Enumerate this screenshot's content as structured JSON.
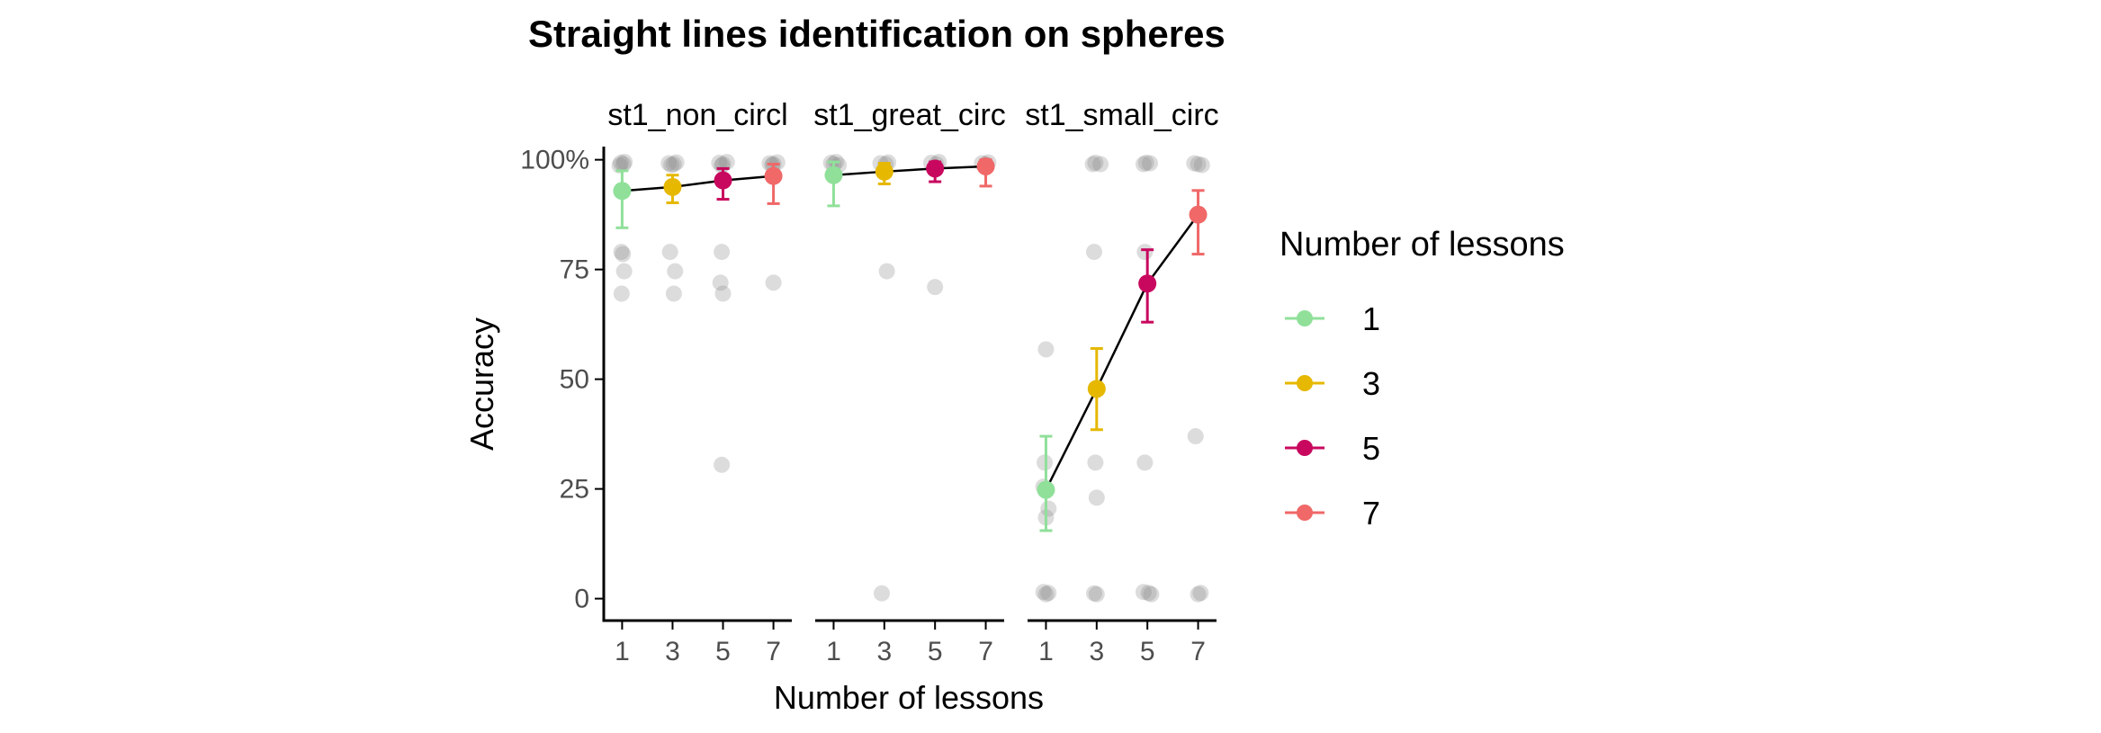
{
  "chart_data": {
    "type": "scatter",
    "title": "Straight lines identification on spheres",
    "xlabel": "Number of lessons",
    "ylabel": "Accuracy",
    "x_ticks": [
      "1",
      "3",
      "5",
      "7"
    ],
    "y_ticks": [
      "0",
      "25",
      "50",
      "75",
      "100%"
    ],
    "ylim": [
      -5,
      103
    ],
    "legend": {
      "title": "Number of lessons",
      "position": "right",
      "entries": [
        {
          "label": "1",
          "color": "#90e09a"
        },
        {
          "label": "3",
          "color": "#e6b800"
        },
        {
          "label": "5",
          "color": "#c8085e"
        },
        {
          "label": "7",
          "color": "#f06868"
        }
      ]
    },
    "panels": [
      {
        "label": "st1_non_circl",
        "means": [
          {
            "x": 1,
            "y": 92.9,
            "lo": 84.5,
            "hi": 97.5
          },
          {
            "x": 3,
            "y": 93.8,
            "lo": 90.2,
            "hi": 96.5
          },
          {
            "x": 5,
            "y": 95.3,
            "lo": 91.0,
            "hi": 98.0
          },
          {
            "x": 7,
            "y": 96.3,
            "lo": 90.0,
            "hi": 99.0
          }
        ],
        "raw_points": [
          {
            "x": 0.95,
            "y": 99.3
          },
          {
            "x": 1.05,
            "y": 99.0
          },
          {
            "x": 0.9,
            "y": 98.7
          },
          {
            "x": 1.1,
            "y": 99.5
          },
          {
            "x": 0.97,
            "y": 79.0
          },
          {
            "x": 1.03,
            "y": 78.5
          },
          {
            "x": 1.08,
            "y": 74.6
          },
          {
            "x": 0.98,
            "y": 69.5
          },
          {
            "x": 2.85,
            "y": 99.2
          },
          {
            "x": 3.05,
            "y": 99.0
          },
          {
            "x": 3.15,
            "y": 99.4
          },
          {
            "x": 2.95,
            "y": 98.8
          },
          {
            "x": 2.9,
            "y": 79.0
          },
          {
            "x": 3.1,
            "y": 74.6
          },
          {
            "x": 3.05,
            "y": 69.5
          },
          {
            "x": 4.85,
            "y": 99.3
          },
          {
            "x": 5.0,
            "y": 99.0
          },
          {
            "x": 5.15,
            "y": 99.5
          },
          {
            "x": 4.95,
            "y": 98.7
          },
          {
            "x": 4.95,
            "y": 79.0
          },
          {
            "x": 4.9,
            "y": 72.0
          },
          {
            "x": 5.0,
            "y": 69.5
          },
          {
            "x": 4.95,
            "y": 30.5
          },
          {
            "x": 6.85,
            "y": 99.2
          },
          {
            "x": 7.0,
            "y": 99.0
          },
          {
            "x": 7.15,
            "y": 99.4
          },
          {
            "x": 6.95,
            "y": 98.8
          },
          {
            "x": 7.0,
            "y": 72.0
          }
        ]
      },
      {
        "label": "st1_great_circ",
        "means": [
          {
            "x": 1,
            "y": 96.5,
            "lo": 89.5,
            "hi": 99.5
          },
          {
            "x": 3,
            "y": 97.3,
            "lo": 94.5,
            "hi": 99.2
          },
          {
            "x": 5,
            "y": 98.0,
            "lo": 95.0,
            "hi": 99.5
          },
          {
            "x": 7,
            "y": 98.5,
            "lo": 94.0,
            "hi": 100.0
          }
        ],
        "raw_points": [
          {
            "x": 0.9,
            "y": 99.3
          },
          {
            "x": 1.0,
            "y": 99.0
          },
          {
            "x": 1.1,
            "y": 99.5
          },
          {
            "x": 1.2,
            "y": 98.8
          },
          {
            "x": 2.85,
            "y": 99.2
          },
          {
            "x": 3.05,
            "y": 99.0
          },
          {
            "x": 3.15,
            "y": 99.4
          },
          {
            "x": 3.1,
            "y": 74.6
          },
          {
            "x": 2.9,
            "y": 1.2
          },
          {
            "x": 4.85,
            "y": 99.3
          },
          {
            "x": 5.05,
            "y": 99.0
          },
          {
            "x": 5.15,
            "y": 99.5
          },
          {
            "x": 5.0,
            "y": 71.0
          },
          {
            "x": 6.85,
            "y": 99.2
          },
          {
            "x": 7.0,
            "y": 99.0
          },
          {
            "x": 7.1,
            "y": 99.4
          }
        ]
      },
      {
        "label": "st1_small_circ",
        "means": [
          {
            "x": 1,
            "y": 24.8,
            "lo": 15.5,
            "hi": 37.0
          },
          {
            "x": 3,
            "y": 47.8,
            "lo": 38.5,
            "hi": 57.0
          },
          {
            "x": 5,
            "y": 71.8,
            "lo": 63.0,
            "hi": 79.5
          },
          {
            "x": 7,
            "y": 87.5,
            "lo": 78.5,
            "hi": 93.0
          }
        ],
        "raw_points": [
          {
            "x": 1.0,
            "y": 56.8
          },
          {
            "x": 0.95,
            "y": 31.0
          },
          {
            "x": 0.9,
            "y": 25.5
          },
          {
            "x": 1.1,
            "y": 20.5
          },
          {
            "x": 1.0,
            "y": 18.5
          },
          {
            "x": 0.9,
            "y": 1.5
          },
          {
            "x": 1.0,
            "y": 1.0
          },
          {
            "x": 1.1,
            "y": 1.3
          },
          {
            "x": 2.85,
            "y": 99.0
          },
          {
            "x": 2.95,
            "y": 99.3
          },
          {
            "x": 3.15,
            "y": 99.0
          },
          {
            "x": 2.9,
            "y": 79.0
          },
          {
            "x": 2.95,
            "y": 31.0
          },
          {
            "x": 3.0,
            "y": 23.0
          },
          {
            "x": 2.9,
            "y": 1.2
          },
          {
            "x": 3.0,
            "y": 1.0
          },
          {
            "x": 4.85,
            "y": 99.0
          },
          {
            "x": 4.95,
            "y": 99.3
          },
          {
            "x": 5.1,
            "y": 99.2
          },
          {
            "x": 4.9,
            "y": 79.0
          },
          {
            "x": 4.9,
            "y": 31.0
          },
          {
            "x": 4.85,
            "y": 1.5
          },
          {
            "x": 5.05,
            "y": 1.3
          },
          {
            "x": 5.15,
            "y": 1.0
          },
          {
            "x": 6.85,
            "y": 99.2
          },
          {
            "x": 7.0,
            "y": 99.0
          },
          {
            "x": 7.15,
            "y": 98.8
          },
          {
            "x": 6.9,
            "y": 37.0
          },
          {
            "x": 7.0,
            "y": 1.0
          },
          {
            "x": 7.1,
            "y": 1.3
          }
        ]
      }
    ]
  }
}
